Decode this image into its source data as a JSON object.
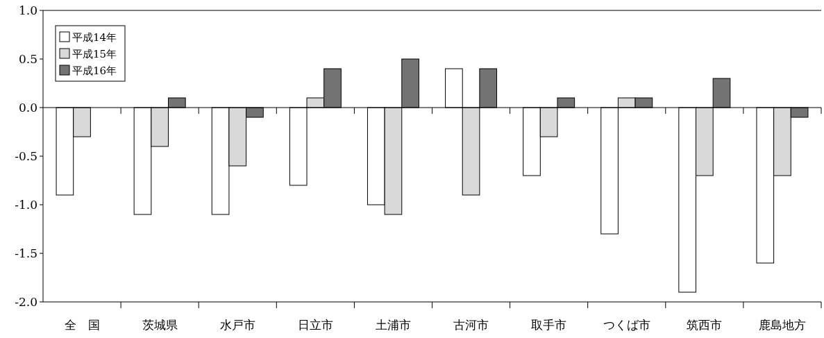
{
  "chart_data": {
    "type": "bar",
    "categories": [
      "全　国",
      "茨城県",
      "水戸市",
      "日立市",
      "土浦市",
      "古河市",
      "取手市",
      "つくば市",
      "筑西市",
      "鹿島地方"
    ],
    "series": [
      {
        "name": "平成14年",
        "color": "#ffffff",
        "values": [
          -0.9,
          -1.1,
          -1.1,
          -0.8,
          -1.0,
          0.4,
          -0.7,
          -1.3,
          -1.9,
          -1.6
        ]
      },
      {
        "name": "平成15年",
        "color": "#d9d9d9",
        "values": [
          -0.3,
          -0.4,
          -0.6,
          0.1,
          -1.1,
          -0.9,
          -0.3,
          0.1,
          -0.7,
          -0.7
        ]
      },
      {
        "name": "平成16年",
        "color": "#737373",
        "values": [
          0.0,
          0.1,
          -0.1,
          0.4,
          0.5,
          0.4,
          0.1,
          0.1,
          0.3,
          -0.1
        ]
      }
    ],
    "ylim": [
      -2.0,
      1.0
    ],
    "yticks": [
      {
        "value": -2.0,
        "label": "-2.0"
      },
      {
        "value": -1.5,
        "label": "-1.5"
      },
      {
        "value": -1.0,
        "label": "-1.0"
      },
      {
        "value": -0.5,
        "label": "-0.5"
      },
      {
        "value": 0,
        "label": "0.0"
      },
      {
        "value": 0.5,
        "label": "0.5"
      },
      {
        "value": 1.0,
        "label": "1.0"
      }
    ],
    "legend": "top left"
  }
}
